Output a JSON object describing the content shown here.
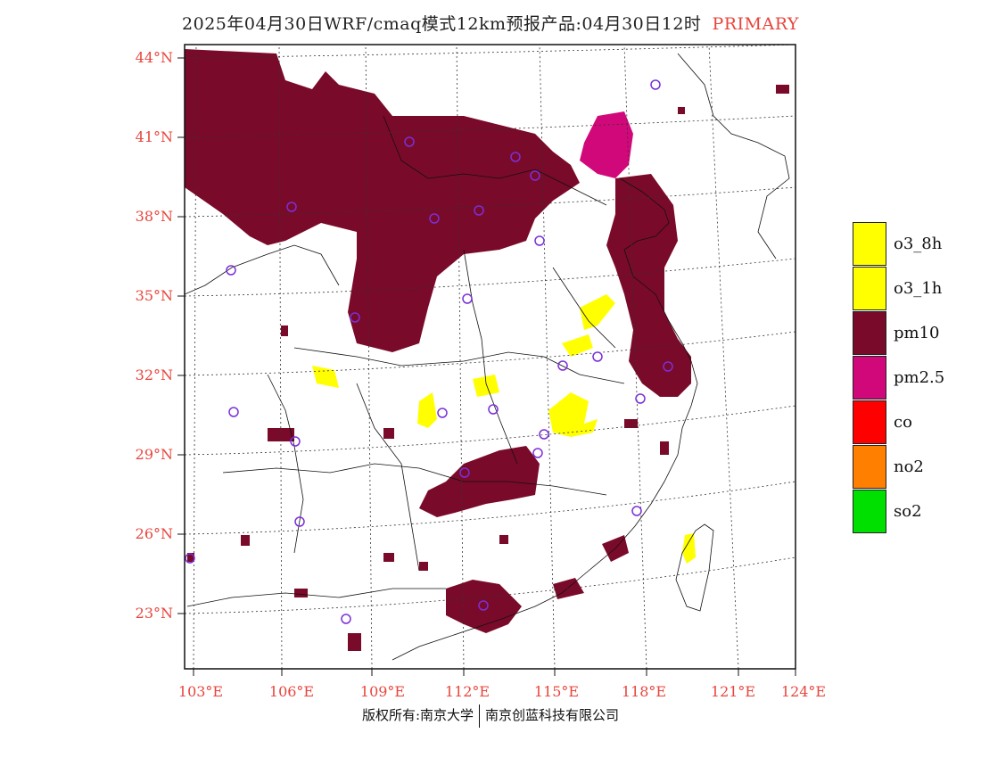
{
  "title": {
    "text": "2025年04月30日WRF/cmaq模式12km预报产品:04月30日12时",
    "tag": "PRIMARY"
  },
  "colors": {
    "label_red": "#e8453c",
    "pm10": "#7a0a2a",
    "pm25": "#d1087a",
    "o3": "#ffff00",
    "co": "#ff0000",
    "no2": "#ff7f00",
    "so2": "#00e000",
    "station": "#7b2fd8",
    "grid": "#333333"
  },
  "map": {
    "lat_labels": [
      "44°N",
      "41°N",
      "38°N",
      "35°N",
      "32°N",
      "29°N",
      "26°N",
      "23°N"
    ],
    "lon_labels": [
      "103°E",
      "106°E",
      "109°E",
      "112°E",
      "115°E",
      "118°E",
      "121°E",
      "124°E"
    ]
  },
  "legend": [
    {
      "label": "o3_8h",
      "color": "#ffff00"
    },
    {
      "label": "o3_1h",
      "color": "#ffff00"
    },
    {
      "label": "pm10",
      "color": "#7a0a2a"
    },
    {
      "label": "pm2.5",
      "color": "#d1087a"
    },
    {
      "label": "co",
      "color": "#ff0000"
    },
    {
      "label": "no2",
      "color": "#ff7f00"
    },
    {
      "label": "so2",
      "color": "#00e000"
    }
  ],
  "footer": {
    "left": "版权所有:南京大学",
    "right": "南京创蓝科技有限公司"
  }
}
